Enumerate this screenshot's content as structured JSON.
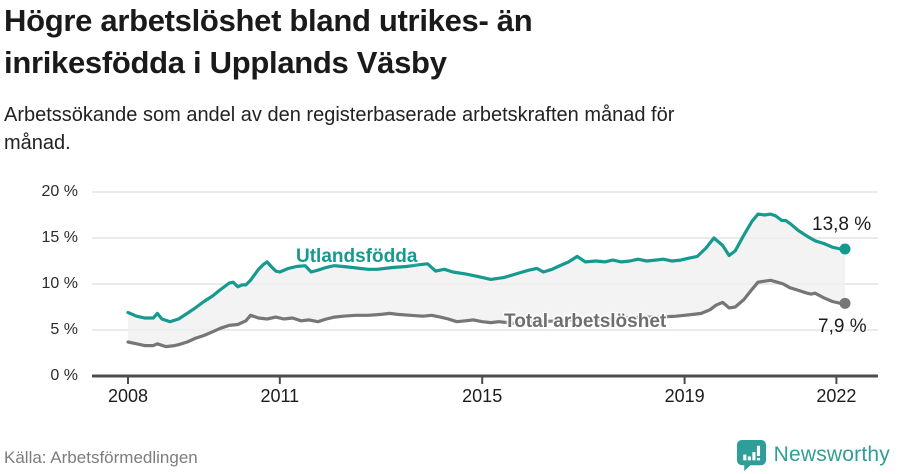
{
  "header": {
    "title_line1": "Högre arbetslöshet bland utrikes- än",
    "title_line2": "inrikesfödda i Upplands Väsby",
    "subtitle_line1": "Arbetssökande som andel av den registerbaserade arbetskraften månad för",
    "subtitle_line2": "månad."
  },
  "chart_data": {
    "type": "line",
    "unit": "%",
    "grid": "horizontal",
    "colors": {
      "gridline": "#dedede",
      "axis": "#4c4c4c",
      "band_fill": "#efefef"
    },
    "y_axis": {
      "range": [
        0,
        20
      ],
      "ticks": [
        {
          "value": 0,
          "label": "0 %"
        },
        {
          "value": 5,
          "label": "5 %"
        },
        {
          "value": 10,
          "label": "10 %"
        },
        {
          "value": 15,
          "label": "15 %"
        },
        {
          "value": 20,
          "label": "20 %"
        }
      ]
    },
    "x_axis": {
      "range": [
        2008,
        2022.3
      ],
      "ticks": [
        {
          "year": 2008,
          "label": "2008"
        },
        {
          "year": 2011,
          "label": "2011"
        },
        {
          "year": 2015,
          "label": "2015"
        },
        {
          "year": 2019,
          "label": "2019"
        },
        {
          "year": 2022,
          "label": "2022"
        }
      ]
    },
    "series": [
      {
        "name": "Utlandsfödda",
        "color": "#169a90",
        "end_label": "13,8 %",
        "end_value": 13.8,
        "points": [
          [
            2008.0,
            6.9
          ],
          [
            2008.17,
            6.5
          ],
          [
            2008.33,
            6.3
          ],
          [
            2008.5,
            6.3
          ],
          [
            2008.58,
            6.8
          ],
          [
            2008.67,
            6.2
          ],
          [
            2008.83,
            5.9
          ],
          [
            2009.0,
            6.2
          ],
          [
            2009.17,
            6.8
          ],
          [
            2009.33,
            7.4
          ],
          [
            2009.5,
            8.1
          ],
          [
            2009.67,
            8.7
          ],
          [
            2009.83,
            9.4
          ],
          [
            2010.0,
            10.1
          ],
          [
            2010.08,
            10.2
          ],
          [
            2010.17,
            9.7
          ],
          [
            2010.25,
            9.9
          ],
          [
            2010.33,
            9.9
          ],
          [
            2010.42,
            10.4
          ],
          [
            2010.5,
            11.0
          ],
          [
            2010.58,
            11.6
          ],
          [
            2010.67,
            12.1
          ],
          [
            2010.75,
            12.4
          ],
          [
            2010.83,
            11.9
          ],
          [
            2010.92,
            11.4
          ],
          [
            2011.0,
            11.3
          ],
          [
            2011.17,
            11.7
          ],
          [
            2011.33,
            11.9
          ],
          [
            2011.5,
            12.0
          ],
          [
            2011.62,
            11.3
          ],
          [
            2011.75,
            11.5
          ],
          [
            2011.92,
            11.8
          ],
          [
            2012.08,
            12.0
          ],
          [
            2012.25,
            11.9
          ],
          [
            2012.42,
            11.8
          ],
          [
            2012.58,
            11.7
          ],
          [
            2012.75,
            11.6
          ],
          [
            2012.92,
            11.6
          ],
          [
            2013.08,
            11.7
          ],
          [
            2013.25,
            11.8
          ],
          [
            2013.5,
            11.9
          ],
          [
            2013.75,
            12.1
          ],
          [
            2013.92,
            12.2
          ],
          [
            2014.08,
            11.4
          ],
          [
            2014.25,
            11.6
          ],
          [
            2014.42,
            11.3
          ],
          [
            2014.67,
            11.1
          ],
          [
            2014.92,
            10.8
          ],
          [
            2015.17,
            10.5
          ],
          [
            2015.42,
            10.7
          ],
          [
            2015.67,
            11.1
          ],
          [
            2015.92,
            11.5
          ],
          [
            2016.08,
            11.7
          ],
          [
            2016.21,
            11.3
          ],
          [
            2016.38,
            11.6
          ],
          [
            2016.5,
            11.9
          ],
          [
            2016.71,
            12.4
          ],
          [
            2016.88,
            13.0
          ],
          [
            2017.04,
            12.4
          ],
          [
            2017.25,
            12.5
          ],
          [
            2017.42,
            12.4
          ],
          [
            2017.58,
            12.6
          ],
          [
            2017.75,
            12.4
          ],
          [
            2017.92,
            12.5
          ],
          [
            2018.08,
            12.7
          ],
          [
            2018.25,
            12.5
          ],
          [
            2018.42,
            12.6
          ],
          [
            2018.58,
            12.7
          ],
          [
            2018.75,
            12.5
          ],
          [
            2018.92,
            12.6
          ],
          [
            2019.08,
            12.8
          ],
          [
            2019.25,
            13.0
          ],
          [
            2019.42,
            13.9
          ],
          [
            2019.58,
            15.0
          ],
          [
            2019.75,
            14.2
          ],
          [
            2019.88,
            13.1
          ],
          [
            2020.0,
            13.6
          ],
          [
            2020.17,
            15.3
          ],
          [
            2020.33,
            16.8
          ],
          [
            2020.45,
            17.6
          ],
          [
            2020.58,
            17.5
          ],
          [
            2020.7,
            17.6
          ],
          [
            2020.8,
            17.4
          ],
          [
            2020.92,
            16.9
          ],
          [
            2021.0,
            16.9
          ],
          [
            2021.1,
            16.5
          ],
          [
            2021.25,
            15.8
          ],
          [
            2021.42,
            15.2
          ],
          [
            2021.58,
            14.7
          ],
          [
            2021.75,
            14.4
          ],
          [
            2021.92,
            14.0
          ],
          [
            2022.08,
            13.8
          ],
          [
            2022.17,
            13.8
          ]
        ]
      },
      {
        "name": "Total arbetslöshet",
        "color": "#767676",
        "end_label": "7,9 %",
        "end_value": 7.9,
        "points": [
          [
            2008.0,
            3.7
          ],
          [
            2008.17,
            3.5
          ],
          [
            2008.33,
            3.3
          ],
          [
            2008.5,
            3.3
          ],
          [
            2008.58,
            3.5
          ],
          [
            2008.75,
            3.2
          ],
          [
            2008.92,
            3.3
          ],
          [
            2009.0,
            3.4
          ],
          [
            2009.17,
            3.7
          ],
          [
            2009.33,
            4.1
          ],
          [
            2009.5,
            4.4
          ],
          [
            2009.67,
            4.8
          ],
          [
            2009.83,
            5.2
          ],
          [
            2010.0,
            5.5
          ],
          [
            2010.17,
            5.6
          ],
          [
            2010.33,
            6.0
          ],
          [
            2010.42,
            6.6
          ],
          [
            2010.58,
            6.3
          ],
          [
            2010.75,
            6.2
          ],
          [
            2010.92,
            6.4
          ],
          [
            2011.08,
            6.2
          ],
          [
            2011.25,
            6.3
          ],
          [
            2011.42,
            6.0
          ],
          [
            2011.58,
            6.1
          ],
          [
            2011.75,
            5.9
          ],
          [
            2011.92,
            6.2
          ],
          [
            2012.08,
            6.4
          ],
          [
            2012.25,
            6.5
          ],
          [
            2012.5,
            6.6
          ],
          [
            2012.75,
            6.6
          ],
          [
            2013.0,
            6.7
          ],
          [
            2013.17,
            6.8
          ],
          [
            2013.33,
            6.7
          ],
          [
            2013.58,
            6.6
          ],
          [
            2013.83,
            6.5
          ],
          [
            2014.0,
            6.6
          ],
          [
            2014.17,
            6.4
          ],
          [
            2014.33,
            6.2
          ],
          [
            2014.5,
            5.9
          ],
          [
            2014.67,
            6.0
          ],
          [
            2014.83,
            6.1
          ],
          [
            2015.0,
            5.9
          ],
          [
            2015.17,
            5.8
          ],
          [
            2015.33,
            5.9
          ],
          [
            2015.5,
            5.8
          ],
          [
            2015.67,
            5.7
          ],
          [
            2015.92,
            5.9
          ],
          [
            2016.17,
            5.9
          ],
          [
            2016.5,
            6.0
          ],
          [
            2016.83,
            6.1
          ],
          [
            2017.17,
            6.1
          ],
          [
            2017.5,
            6.2
          ],
          [
            2017.83,
            6.3
          ],
          [
            2018.17,
            6.4
          ],
          [
            2018.5,
            6.4
          ],
          [
            2018.83,
            6.5
          ],
          [
            2019.0,
            6.6
          ],
          [
            2019.17,
            6.7
          ],
          [
            2019.33,
            6.8
          ],
          [
            2019.5,
            7.2
          ],
          [
            2019.62,
            7.7
          ],
          [
            2019.75,
            8.0
          ],
          [
            2019.88,
            7.4
          ],
          [
            2020.0,
            7.5
          ],
          [
            2020.17,
            8.3
          ],
          [
            2020.33,
            9.4
          ],
          [
            2020.45,
            10.2
          ],
          [
            2020.58,
            10.3
          ],
          [
            2020.7,
            10.4
          ],
          [
            2020.83,
            10.2
          ],
          [
            2020.95,
            10.0
          ],
          [
            2021.08,
            9.6
          ],
          [
            2021.25,
            9.3
          ],
          [
            2021.42,
            9.0
          ],
          [
            2021.5,
            8.9
          ],
          [
            2021.58,
            9.0
          ],
          [
            2021.75,
            8.5
          ],
          [
            2021.92,
            8.1
          ],
          [
            2022.08,
            7.9
          ],
          [
            2022.17,
            7.9
          ]
        ]
      }
    ]
  },
  "footer": {
    "source": "Källa: Arbetsförmedlingen",
    "brand": "Newsworthy",
    "brand_color": "#2f9e99"
  }
}
